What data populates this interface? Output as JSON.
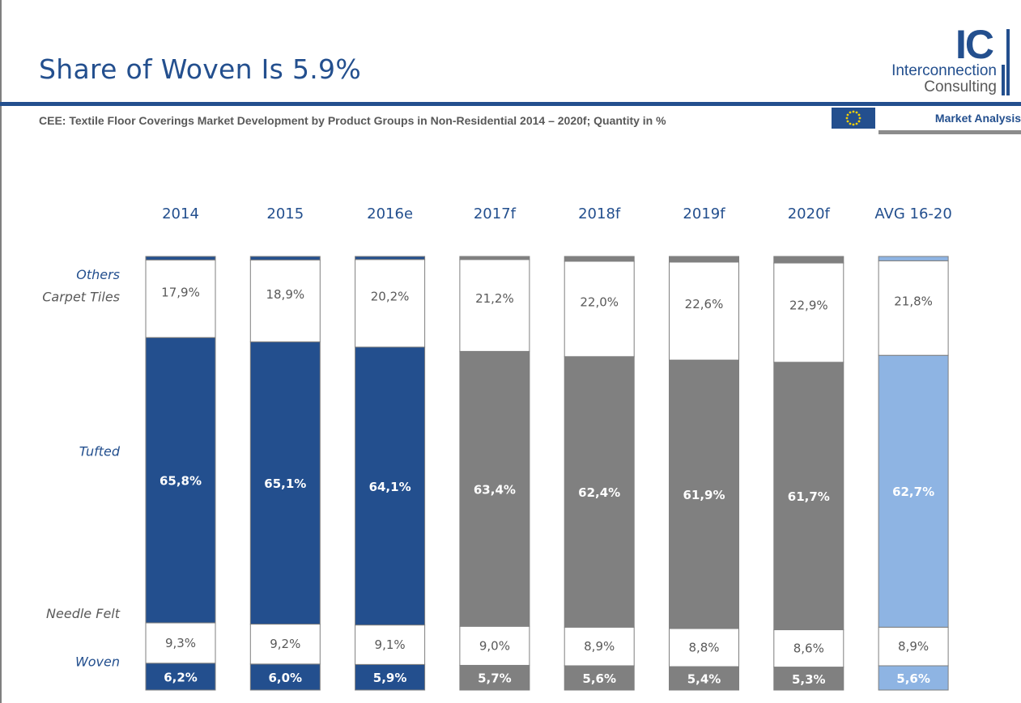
{
  "header": {
    "title": "Share of Woven Is 5.9%",
    "subtitle": "CEE: Textile Floor Coverings Market Development by Product Groups in Non-Residential 2014 – 2020f; Quantity in %",
    "logo_mark": "IC",
    "logo_line1": "Interconnection",
    "logo_line2": "Consulting",
    "flag_icon": "eu-flag-icon",
    "market_label": "Market Analysis"
  },
  "colors": {
    "blue": "#234f8e",
    "grey": "#808080",
    "light_blue": "#8eb4e3",
    "white": "#ffffff",
    "title": "#234f8e"
  },
  "chart_data": {
    "type": "bar",
    "stacked": true,
    "normalized": true,
    "categories": [
      "2014",
      "2015",
      "2016e",
      "2017f",
      "2018f",
      "2019f",
      "2020f",
      "AVG 16-20"
    ],
    "series": [
      {
        "name": "Woven",
        "values": [
          6.2,
          6.0,
          5.9,
          5.7,
          5.6,
          5.4,
          5.3,
          5.6
        ],
        "labels": [
          "6,2%",
          "6,0%",
          "5,9%",
          "5,7%",
          "5,6%",
          "5,4%",
          "5,3%",
          "5,6%"
        ]
      },
      {
        "name": "Needle Felt",
        "values": [
          9.3,
          9.2,
          9.1,
          9.0,
          8.9,
          8.8,
          8.6,
          8.9
        ],
        "labels": [
          "9,3%",
          "9,2%",
          "9,1%",
          "9,0%",
          "8,9%",
          "8,8%",
          "8,6%",
          "8,9%"
        ]
      },
      {
        "name": "Tufted",
        "values": [
          65.8,
          65.1,
          64.1,
          63.4,
          62.4,
          61.9,
          61.7,
          62.7
        ],
        "labels": [
          "65,8%",
          "65,1%",
          "64,1%",
          "63,4%",
          "62,4%",
          "61,9%",
          "61,7%",
          "62,7%"
        ]
      },
      {
        "name": "Carpet Tiles",
        "values": [
          17.9,
          18.9,
          20.2,
          21.2,
          22.0,
          22.6,
          22.9,
          21.8
        ],
        "labels": [
          "17,9%",
          "18,9%",
          "20,2%",
          "21,2%",
          "22,0%",
          "22,6%",
          "22,9%",
          "21,8%"
        ]
      },
      {
        "name": "Others",
        "values": [
          0.8,
          0.8,
          0.7,
          0.7,
          1.1,
          1.3,
          1.5,
          1.0
        ],
        "labels": [
          "",
          "",
          "",
          "",
          "",
          "",
          "",
          ""
        ]
      }
    ],
    "ylim": [
      0,
      100
    ],
    "legend": "left",
    "grid": false
  }
}
